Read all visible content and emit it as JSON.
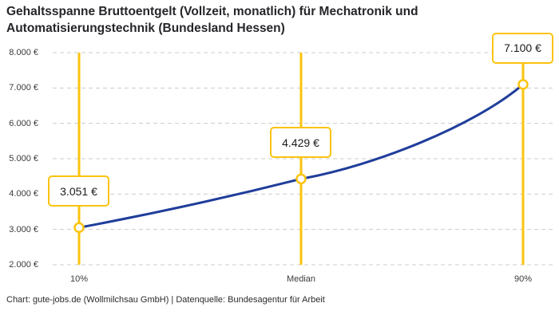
{
  "header": {
    "title": "Gehaltsspanne Bruttoentgelt (Vollzeit, monatlich) für Mechatronik und Automatisierungstechnik (Bundesland Hessen)"
  },
  "footer": {
    "text": "Chart: gute-jobs.de (Wollmilchsau GmbH) | Datenquelle: Bundesagentur für Arbeit"
  },
  "chart_data": {
    "type": "line",
    "title": "Gehaltsspanne Bruttoentgelt (Vollzeit, monatlich) für Mechatronik und Automatisierungstechnik (Bundesland Hessen)",
    "categories": [
      "10%",
      "Median",
      "90%"
    ],
    "values": [
      3051,
      4429,
      7100
    ],
    "value_labels": [
      "3.051 €",
      "4.429 €",
      "7.100 €"
    ],
    "ylim": [
      2000,
      8000
    ],
    "yticks": [
      {
        "value": 2000,
        "label": "2.000 €"
      },
      {
        "value": 3000,
        "label": "3.000 €"
      },
      {
        "value": 4000,
        "label": "4.000 €"
      },
      {
        "value": 5000,
        "label": "5.000 €"
      },
      {
        "value": 6000,
        "label": "6.000 €"
      },
      {
        "value": 7000,
        "label": "7.000 €"
      },
      {
        "value": 8000,
        "label": "8.000 €"
      }
    ],
    "xlabel": "",
    "ylabel": "",
    "grid": "horizontal-dashed",
    "legend": "none",
    "colors": {
      "line": "#1f3d9b",
      "percentile_line": "#fcc30f",
      "marker_fill": "#ffffff",
      "annotation_border": "#fcc30f",
      "grid": "#cccccc"
    }
  }
}
